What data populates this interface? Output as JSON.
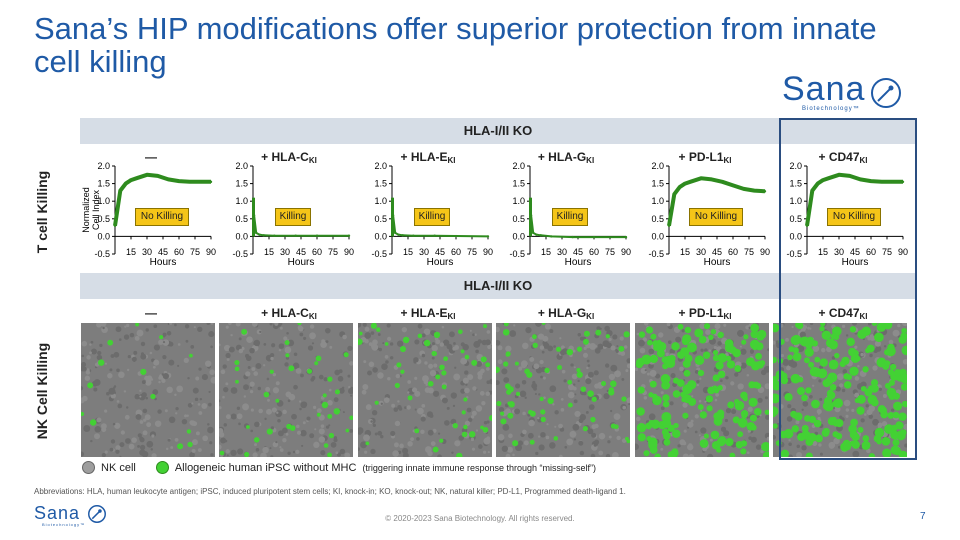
{
  "title": "Sana’s HIP modifications offer superior protection from innate cell killing",
  "logo": {
    "word": "Sana",
    "sub": "Biotechnology™"
  },
  "band_top": "HLA-I/II KO",
  "band_mid": "HLA-I/II KO",
  "row_t": "T cell Killing",
  "row_nk": "NK Cell Killing",
  "columns": [
    {
      "main": "—",
      "sub": ""
    },
    {
      "main": "+ HLA-C",
      "sub": "KI"
    },
    {
      "main": "+ HLA-E",
      "sub": "KI"
    },
    {
      "main": "+ HLA-G",
      "sub": "KI"
    },
    {
      "main": "+ PD-L1",
      "sub": "KI"
    },
    {
      "main": "+ CD47",
      "sub": "KI"
    }
  ],
  "chart_data": [
    {
      "type": "line",
      "title": "—",
      "xlabel": "Hours",
      "ylabel": "Normalized Cell Index",
      "xticks": [
        15,
        30,
        45,
        60,
        75,
        90
      ],
      "yticks": [
        -0.5,
        0.0,
        0.5,
        1.0,
        1.5,
        2.0
      ],
      "ylim": [
        -0.5,
        2.0
      ],
      "xlim": [
        0,
        90
      ],
      "annotation": "No Killing",
      "x": [
        0,
        5,
        10,
        15,
        20,
        30,
        40,
        50,
        60,
        70,
        80,
        90
      ],
      "y": [
        0.3,
        1.3,
        1.5,
        1.6,
        1.65,
        1.75,
        1.72,
        1.62,
        1.57,
        1.55,
        1.55,
        1.55
      ]
    },
    {
      "type": "line",
      "title": "+ HLA-C KI",
      "xlabel": "Hours",
      "xticks": [
        15,
        30,
        45,
        60,
        75,
        90
      ],
      "yticks": [
        -0.5,
        0.0,
        0.5,
        1.0,
        1.5,
        2.0
      ],
      "ylim": [
        -0.5,
        2.0
      ],
      "xlim": [
        0,
        90
      ],
      "annotation": "Killing",
      "x": [
        0,
        1,
        3,
        6,
        10,
        20,
        40,
        60,
        90
      ],
      "y": [
        1.0,
        0.6,
        0.1,
        0.05,
        0.03,
        0.02,
        0.02,
        0.02,
        0.02
      ]
    },
    {
      "type": "line",
      "title": "+ HLA-E KI",
      "xlabel": "Hours",
      "xticks": [
        15,
        30,
        45,
        60,
        75,
        90
      ],
      "yticks": [
        -0.5,
        0.0,
        0.5,
        1.0,
        1.5,
        2.0
      ],
      "ylim": [
        -0.5,
        2.0
      ],
      "xlim": [
        0,
        90
      ],
      "annotation": "Killing",
      "x": [
        0,
        1,
        3,
        6,
        10,
        20,
        40,
        60,
        90
      ],
      "y": [
        1.0,
        0.6,
        0.1,
        0.05,
        0.03,
        0.02,
        0.02,
        0.01,
        0.0
      ]
    },
    {
      "type": "line",
      "title": "+ HLA-G KI",
      "xlabel": "Hours",
      "xticks": [
        15,
        30,
        45,
        60,
        75,
        90
      ],
      "yticks": [
        -0.5,
        0.0,
        0.5,
        1.0,
        1.5,
        2.0
      ],
      "ylim": [
        -0.5,
        2.0
      ],
      "xlim": [
        0,
        90
      ],
      "annotation": "Killing",
      "x": [
        0,
        1,
        3,
        6,
        10,
        20,
        40,
        60,
        90
      ],
      "y": [
        1.0,
        0.6,
        0.1,
        0.05,
        0.03,
        0.0,
        -0.02,
        -0.02,
        -0.02
      ]
    },
    {
      "type": "line",
      "title": "+ PD-L1 KI",
      "xlabel": "Hours",
      "xticks": [
        15,
        30,
        45,
        60,
        75,
        90
      ],
      "yticks": [
        -0.5,
        0.0,
        0.5,
        1.0,
        1.5,
        2.0
      ],
      "ylim": [
        -0.5,
        2.0
      ],
      "xlim": [
        0,
        90
      ],
      "annotation": "No Killing",
      "x": [
        0,
        5,
        10,
        15,
        20,
        30,
        40,
        50,
        60,
        70,
        80,
        90
      ],
      "y": [
        0.3,
        1.2,
        1.4,
        1.5,
        1.55,
        1.65,
        1.62,
        1.55,
        1.45,
        1.35,
        1.3,
        1.28
      ]
    },
    {
      "type": "line",
      "title": "+ CD47 KI",
      "xlabel": "Hours",
      "xticks": [
        15,
        30,
        45,
        60,
        75,
        90
      ],
      "yticks": [
        -0.5,
        0.0,
        0.5,
        1.0,
        1.5,
        2.0
      ],
      "ylim": [
        -0.5,
        2.0
      ],
      "xlim": [
        0,
        90
      ],
      "annotation": "No Killing",
      "x": [
        0,
        5,
        10,
        15,
        20,
        30,
        40,
        50,
        60,
        70,
        80,
        90
      ],
      "y": [
        0.3,
        1.3,
        1.5,
        1.6,
        1.65,
        1.75,
        1.72,
        1.62,
        1.57,
        1.55,
        1.55,
        1.55
      ]
    }
  ],
  "legend": {
    "nk": "NK cell",
    "ipsc": "Allogeneic human iPSC without MHC",
    "ipsc_note": "(triggering innate immune response through “missing-self”)"
  },
  "colors": {
    "brand": "#1f5aa6",
    "line": "#2e8b1e",
    "nk_dot": "#9e9e9e",
    "ipsc_dot": "#43d134",
    "badge": "#f5c518"
  },
  "abbreviations": "Abbreviations: HLA, human leukocyte antigen; iPSC, induced pluripotent stem cells; KI, knock-in; KO, knock-out; NK, natural killer; PD-L1, Programmed death-ligand 1.",
  "copyright": "© 2020-2023 Sana Biotechnology. All rights reserved.",
  "page_number": "7",
  "nk_density": [
    0.05,
    0.13,
    0.17,
    0.23,
    0.62,
    0.72
  ]
}
